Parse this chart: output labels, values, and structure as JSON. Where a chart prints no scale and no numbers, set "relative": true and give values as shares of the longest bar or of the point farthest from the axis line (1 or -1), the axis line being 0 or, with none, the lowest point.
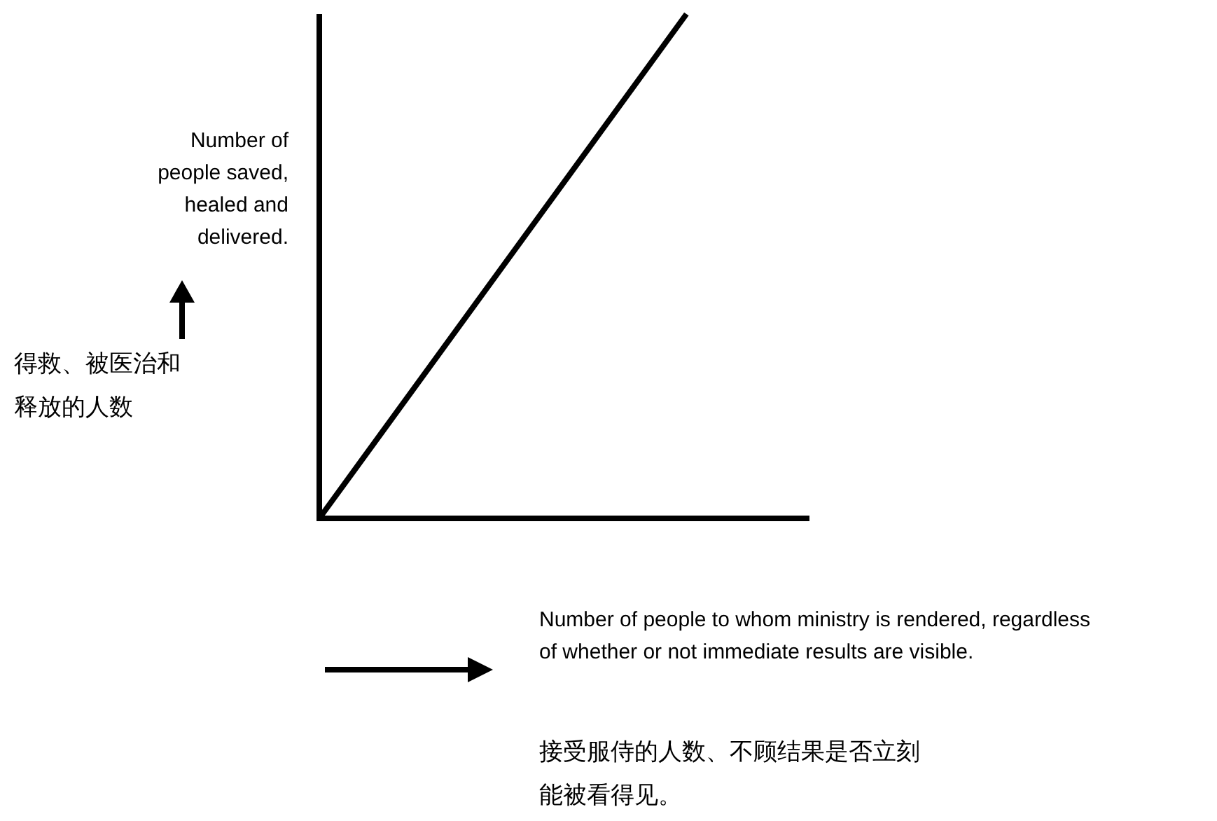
{
  "chart_data": {
    "type": "line",
    "relative": true,
    "xlabel": "Number of people to whom ministry is rendered, regardless of whether or not immediate results are visible.",
    "ylabel": "Number of people saved, healed and delivered.",
    "annotations": [
      "得救、被医治和释放的人数",
      "接受服侍的人数、不顾结果是否立刻能被看得见。"
    ],
    "categories": [
      null,
      null
    ],
    "series": [
      {
        "color": "#000000",
        "values": [
          0,
          1
        ]
      }
    ]
  }
}
